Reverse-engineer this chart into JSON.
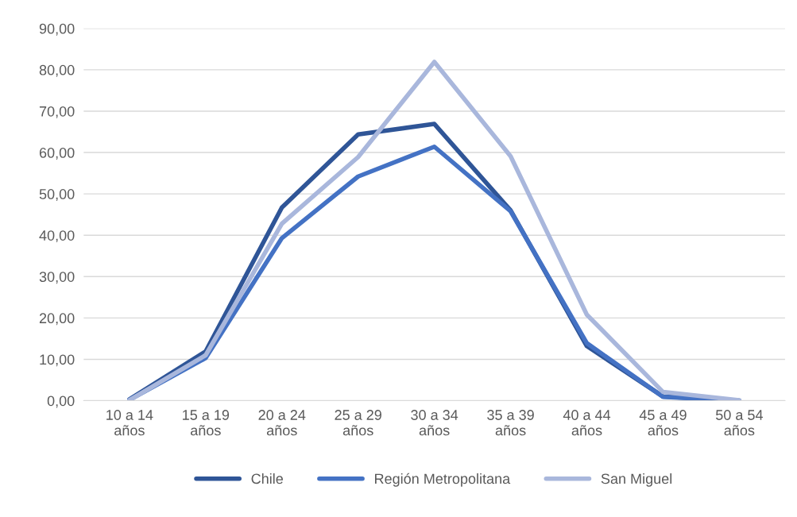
{
  "chart_data": {
    "type": "line",
    "categories": [
      "10 a 14\naños",
      "15 a 19\naños",
      "20 a 24\naños",
      "25 a 29\naños",
      "30 a 34\naños",
      "35 a 39\naños",
      "40 a 44\naños",
      "45 a 49\naños",
      "50 a 54\naños"
    ],
    "series": [
      {
        "name": "Chile",
        "color": "#2f5597",
        "values": [
          0.3,
          11.9,
          46.7,
          64.4,
          66.9,
          46.0,
          13.2,
          1.0,
          0.0
        ]
      },
      {
        "name": "Región Metropolitana",
        "color": "#4472c4",
        "values": [
          0.2,
          10.3,
          39.3,
          54.2,
          61.4,
          45.8,
          13.9,
          0.9,
          0.0
        ]
      },
      {
        "name": "San Miguel",
        "color": "#a9b7dc",
        "values": [
          0.1,
          11.0,
          42.8,
          58.9,
          81.9,
          59.1,
          20.8,
          2.1,
          0.1
        ]
      }
    ],
    "ylim": [
      0,
      90
    ],
    "yticks": [
      {
        "value": 0,
        "label": "0,00"
      },
      {
        "value": 10,
        "label": "10,00"
      },
      {
        "value": 20,
        "label": "20,00"
      },
      {
        "value": 30,
        "label": "30,00"
      },
      {
        "value": 40,
        "label": "40,00"
      },
      {
        "value": 50,
        "label": "50,00"
      },
      {
        "value": 60,
        "label": "60,00"
      },
      {
        "value": 70,
        "label": "70,00"
      },
      {
        "value": 80,
        "label": "80,00"
      },
      {
        "value": 90,
        "label": "90,00"
      }
    ],
    "grid": "y",
    "legend": "bottom",
    "marker": "none",
    "line_style": "solid"
  }
}
